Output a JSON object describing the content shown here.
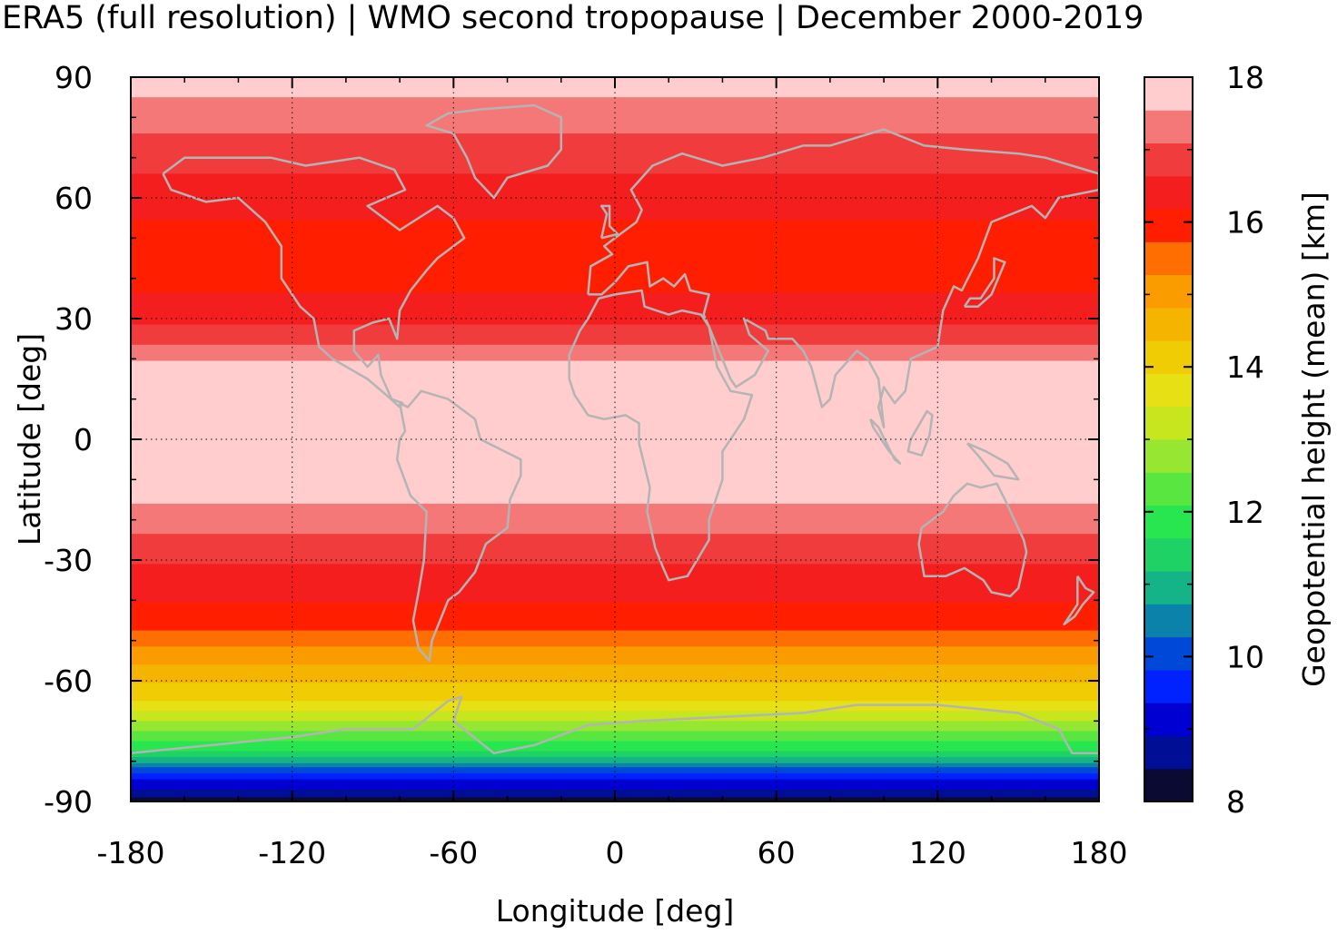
{
  "title": "ERA5 (full resolution) | WMO second tropopause | December 2000-2019",
  "chart_data": {
    "type": "heatmap",
    "xlabel": "Longitude [deg]",
    "ylabel": "Latitude [deg]",
    "xlim": [
      -180,
      180
    ],
    "ylim": [
      -90,
      90
    ],
    "xticks": [
      "-180",
      "-120",
      "-60",
      "0",
      "60",
      "120",
      "180"
    ],
    "yticks": [
      "90",
      "60",
      "30",
      "0",
      "-30",
      "-60",
      "-90"
    ],
    "grid": true,
    "colorbar": {
      "label": "Geopotential height (mean) [km]",
      "range": [
        8,
        18
      ],
      "ticks": [
        "8",
        "10",
        "12",
        "14",
        "16",
        "18"
      ],
      "colors": [
        "#0a0a32",
        "#000e96",
        "#0000d2",
        "#0022ff",
        "#0048d8",
        "#0a82aa",
        "#14b488",
        "#1ed266",
        "#28e650",
        "#5ae641",
        "#96e632",
        "#c8e61e",
        "#e6e014",
        "#f0cc05",
        "#f5b400",
        "#fa9c00",
        "#ff6e00",
        "#ff1e00",
        "#f51e1e",
        "#f03c3c",
        "#f57878",
        "#ffcdcd"
      ]
    },
    "zonal_profile": [
      {
        "lat": 90,
        "km": 17.8
      },
      {
        "lat": 80,
        "km": 17.3
      },
      {
        "lat": 70,
        "km": 16.8
      },
      {
        "lat": 60,
        "km": 16.4
      },
      {
        "lat": 50,
        "km": 16.0
      },
      {
        "lat": 40,
        "km": 16.0
      },
      {
        "lat": 32,
        "km": 16.4
      },
      {
        "lat": 25,
        "km": 16.9
      },
      {
        "lat": 18,
        "km": 17.7
      },
      {
        "lat": 0,
        "km": 17.9
      },
      {
        "lat": -12,
        "km": 17.8
      },
      {
        "lat": -20,
        "km": 17.3
      },
      {
        "lat": -28,
        "km": 16.8
      },
      {
        "lat": -35,
        "km": 16.4
      },
      {
        "lat": -45,
        "km": 16.0
      },
      {
        "lat": -52,
        "km": 15.2
      },
      {
        "lat": -58,
        "km": 14.6
      },
      {
        "lat": -65,
        "km": 13.9
      },
      {
        "lat": -72,
        "km": 12.6
      },
      {
        "lat": -78,
        "km": 11.5
      },
      {
        "lat": -84,
        "km": 9.5
      },
      {
        "lat": -90,
        "km": 8.3
      }
    ]
  }
}
